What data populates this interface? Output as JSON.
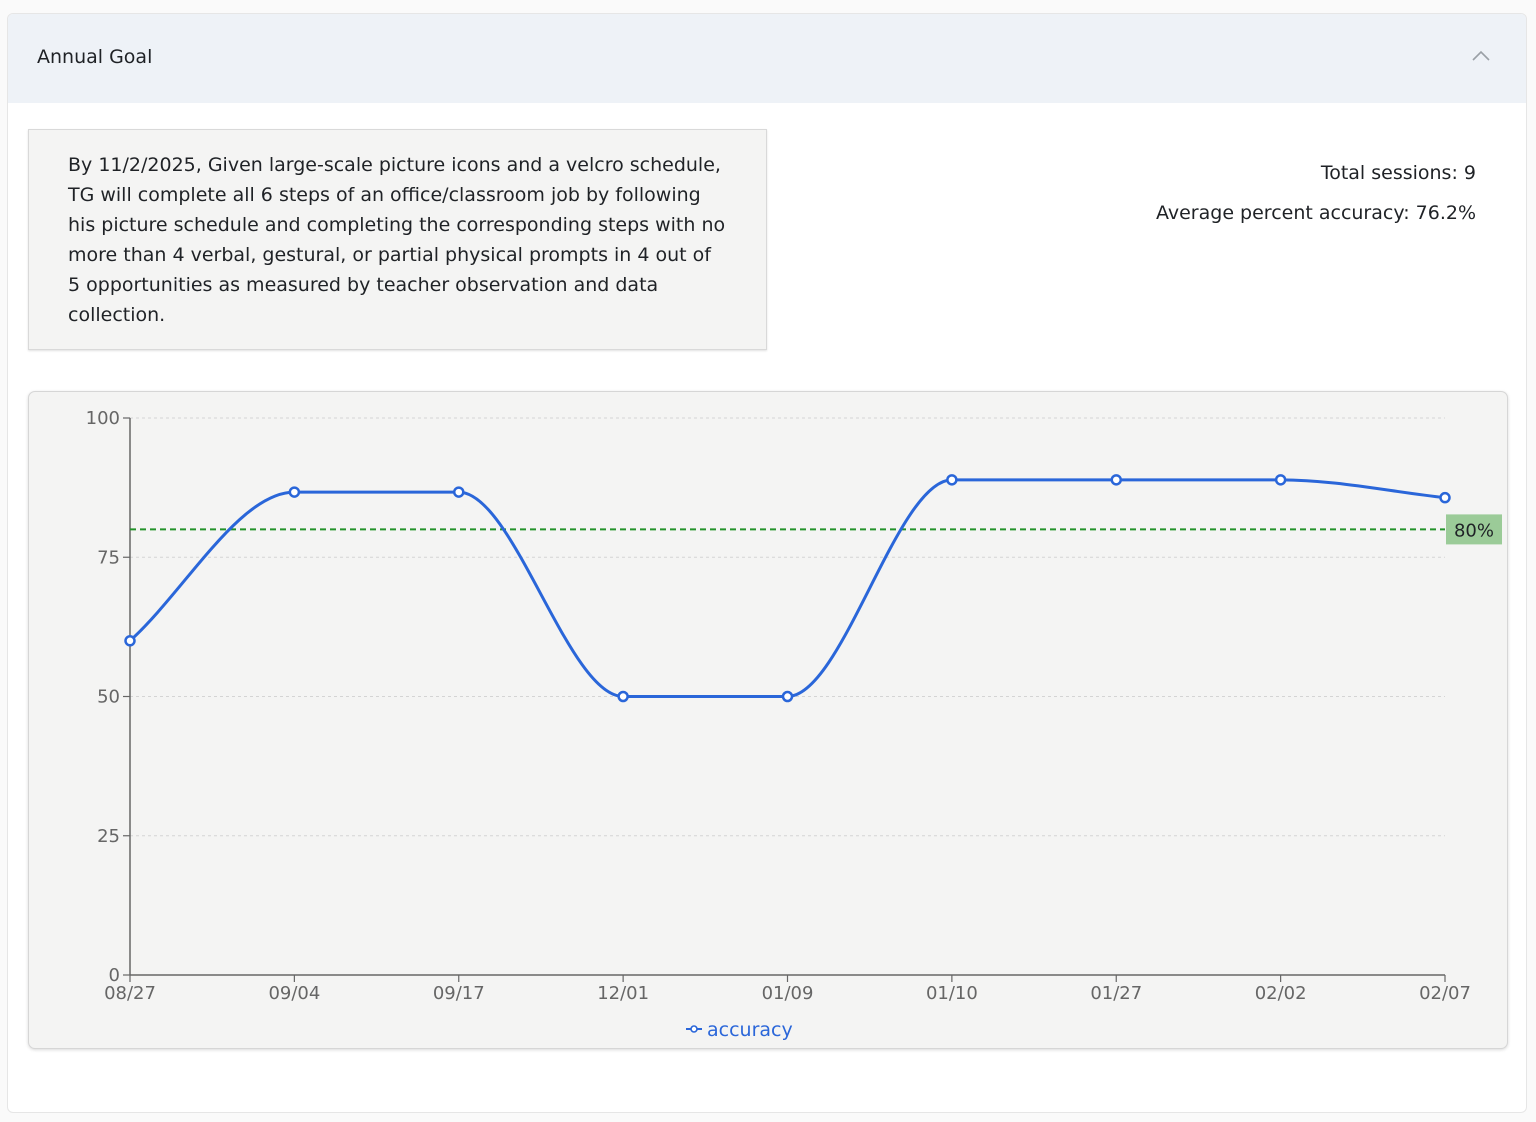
{
  "header": {
    "title": "Annual Goal",
    "toggle_icon": "chevron-up-icon"
  },
  "goal": {
    "text": "By 11/2/2025, Given large-scale picture icons and a velcro schedule, TG will complete all 6 steps of an office/classroom job by following his picture schedule and completing the corresponding steps with no more than 4 verbal, gestural, or partial physical prompts in 4 out of 5 opportunities as measured by teacher observation and data collection."
  },
  "stats": {
    "total_sessions": "Total sessions: 9",
    "average_accuracy": "Average percent accuracy: 76.2%"
  },
  "colors": {
    "line": "#2a66d9",
    "target": "#23922a",
    "target_label_bg": "#9bcb98"
  },
  "chart_data": {
    "type": "line",
    "categories": [
      "08/27",
      "09/04",
      "09/17",
      "12/01",
      "01/09",
      "01/10",
      "01/27",
      "02/02",
      "02/07"
    ],
    "series": [
      {
        "name": "accuracy",
        "values": [
          60,
          86.7,
          86.7,
          50,
          50,
          88.9,
          88.9,
          88.9,
          85.7
        ]
      }
    ],
    "ylim": [
      0,
      100
    ],
    "yticks": [
      0,
      25,
      50,
      75,
      100
    ],
    "target": {
      "value": 80,
      "label": "80%"
    },
    "grid": "horizontal dashed",
    "legend": "bottom-center"
  }
}
